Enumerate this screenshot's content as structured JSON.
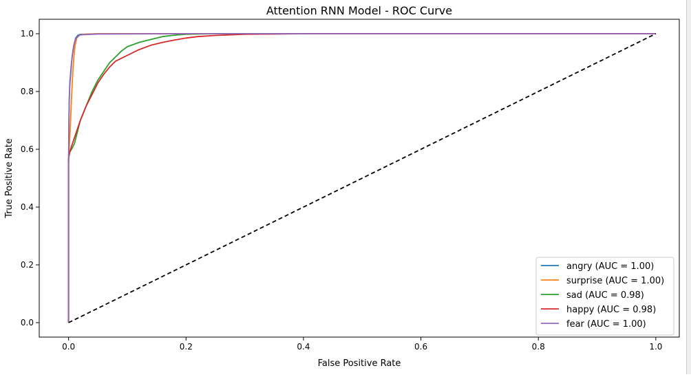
{
  "chart_data": {
    "type": "line",
    "title": "Attention RNN Model - ROC Curve",
    "xlabel": "False Positive Rate",
    "ylabel": "True Positive Rate",
    "xlim": [
      -0.05,
      1.04
    ],
    "ylim": [
      -0.05,
      1.05
    ],
    "xticks": [
      "0.0",
      "0.2",
      "0.4",
      "0.6",
      "0.8",
      "1.0"
    ],
    "yticks": [
      "0.0",
      "0.2",
      "0.4",
      "0.6",
      "0.8",
      "1.0"
    ],
    "grid": false,
    "legend_position": "lower-right",
    "series": [
      {
        "name": "angry (AUC = 1.00)",
        "color": "#1f77b4",
        "x": [
          0,
          0,
          0.0005,
          0.001,
          0.002,
          0.004,
          0.006,
          0.009,
          0.012,
          0.016,
          0.02,
          0.05,
          0.2,
          1.0
        ],
        "y": [
          0,
          0.55,
          0.7,
          0.77,
          0.82,
          0.87,
          0.92,
          0.96,
          0.985,
          0.995,
          0.998,
          1.0,
          1.0,
          1.0
        ]
      },
      {
        "name": "surprise (AUC = 1.00)",
        "color": "#ff7f0e",
        "x": [
          0,
          0,
          0.001,
          0.003,
          0.005,
          0.007,
          0.009,
          0.011,
          0.014,
          0.018,
          0.025,
          0.05,
          0.2,
          1.0
        ],
        "y": [
          0,
          0.55,
          0.6,
          0.68,
          0.78,
          0.86,
          0.92,
          0.96,
          0.985,
          0.995,
          0.998,
          1.0,
          1.0,
          1.0
        ]
      },
      {
        "name": "sad (AUC = 0.98)",
        "color": "#2ca02c",
        "x": [
          0,
          0,
          0.002,
          0.005,
          0.01,
          0.015,
          0.02,
          0.03,
          0.04,
          0.05,
          0.06,
          0.07,
          0.08,
          0.09,
          0.1,
          0.12,
          0.14,
          0.16,
          0.18,
          0.2,
          0.25,
          0.3,
          0.4,
          1.0
        ],
        "y": [
          0,
          0.57,
          0.59,
          0.6,
          0.62,
          0.66,
          0.7,
          0.75,
          0.8,
          0.84,
          0.87,
          0.9,
          0.92,
          0.94,
          0.955,
          0.97,
          0.98,
          0.99,
          0.995,
          0.998,
          1.0,
          1.0,
          1.0,
          1.0
        ]
      },
      {
        "name": "happy (AUC = 0.98)",
        "color": "#d62728",
        "x": [
          0,
          0,
          0.002,
          0.005,
          0.01,
          0.015,
          0.02,
          0.03,
          0.04,
          0.05,
          0.06,
          0.07,
          0.08,
          0.09,
          0.1,
          0.12,
          0.14,
          0.16,
          0.18,
          0.2,
          0.22,
          0.25,
          0.3,
          0.35,
          0.4,
          1.0
        ],
        "y": [
          0,
          0.57,
          0.59,
          0.61,
          0.64,
          0.67,
          0.7,
          0.75,
          0.79,
          0.83,
          0.86,
          0.885,
          0.905,
          0.915,
          0.925,
          0.945,
          0.96,
          0.97,
          0.978,
          0.985,
          0.99,
          0.994,
          0.998,
          0.999,
          1.0,
          1.0
        ]
      },
      {
        "name": "fear (AUC = 1.00)",
        "color": "#9467bd",
        "x": [
          0,
          0,
          0.001,
          0.002,
          0.004,
          0.006,
          0.008,
          0.01,
          0.013,
          0.017,
          0.02,
          0.05,
          0.2,
          1.0
        ],
        "y": [
          0,
          0.55,
          0.75,
          0.83,
          0.88,
          0.92,
          0.95,
          0.97,
          0.985,
          0.992,
          0.996,
          0.999,
          1.0,
          1.0
        ]
      }
    ],
    "reference_line": {
      "style": "dashed",
      "color": "#000000",
      "x": [
        0,
        1
      ],
      "y": [
        0,
        1
      ]
    }
  }
}
